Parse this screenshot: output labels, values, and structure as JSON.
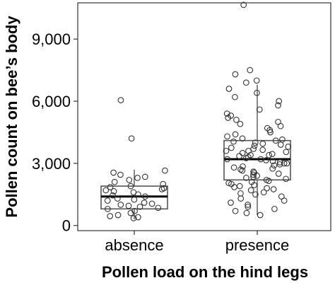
{
  "chart_data": {
    "type": "boxplot",
    "title": "",
    "xlabel": "Pollen load on the hind legs",
    "ylabel": "Pollen count on bee’s body",
    "ylim": [
      -250,
      10750
    ],
    "yticks": [
      0,
      3000,
      6000,
      9000
    ],
    "ytick_labels": [
      "0",
      "3,000",
      "6,000",
      "9,000"
    ],
    "categories": [
      "absence",
      "presence"
    ],
    "grid": false,
    "boxes": [
      {
        "category": "absence",
        "q1": 800,
        "median": 1400,
        "q3": 1900,
        "whisker_low": 300,
        "whisker_high": 2700,
        "outliers": [
          4200,
          6050
        ],
        "points": [
          350,
          400,
          450,
          500,
          600,
          700,
          800,
          850,
          900,
          950,
          1000,
          1050,
          1100,
          1200,
          1250,
          1300,
          1400,
          1450,
          1500,
          1600,
          1650,
          1700,
          1750,
          1800,
          1850,
          1900,
          2000,
          2100,
          2200,
          2300,
          2350,
          2450,
          2550,
          2650
        ]
      },
      {
        "category": "presence",
        "q1": 2200,
        "median": 3200,
        "q3": 4100,
        "whisker_low": 500,
        "whisker_high": 6800,
        "outliers": [
          6900,
          7000,
          7300,
          7500,
          10650
        ],
        "points": [
          500,
          600,
          700,
          800,
          900,
          1000,
          1100,
          1200,
          1300,
          1400,
          1500,
          1550,
          1600,
          1700,
          1750,
          1800,
          1850,
          1900,
          1950,
          2000,
          2050,
          2100,
          2150,
          2200,
          2250,
          2300,
          2350,
          2400,
          2450,
          2500,
          2550,
          2600,
          2650,
          2700,
          2750,
          2800,
          2850,
          2900,
          2950,
          3000,
          3000,
          3050,
          3100,
          3150,
          3200,
          3200,
          3250,
          3300,
          3350,
          3400,
          3400,
          3450,
          3500,
          3550,
          3600,
          3600,
          3650,
          3700,
          3750,
          3800,
          3850,
          3900,
          3950,
          4000,
          4050,
          4100,
          4150,
          4200,
          4300,
          4400,
          4500,
          4600,
          4700,
          4800,
          4900,
          5000,
          5100,
          5200,
          5300,
          5400,
          5600,
          5800,
          6000,
          6200,
          6400,
          6600
        ]
      }
    ]
  }
}
